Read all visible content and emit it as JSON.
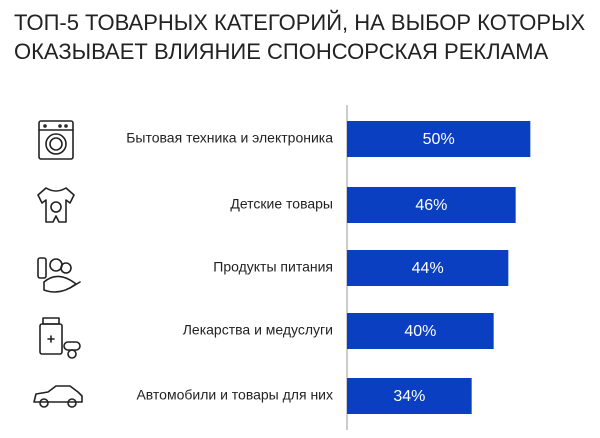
{
  "chart_data": {
    "type": "bar",
    "orientation": "horizontal",
    "title": [
      "ТОП-5 ТОВАРНЫХ КАТЕГОРИЙ, НА ВЫБОР КОТОРЫХ",
      "ОКАЗЫВАЕТ ВЛИЯНИЕ СПОНСОРСКАЯ РЕКЛАМА"
    ],
    "categories": [
      "Бытовая техника и электроника",
      "Детские товары",
      "Продукты питания",
      "Лекарства и медуслуги",
      "Автомобили и товары для них"
    ],
    "values": [
      50,
      46,
      44,
      40,
      34
    ],
    "value_labels": [
      "50%",
      "46%",
      "44%",
      "40%",
      "34%"
    ],
    "color": "#0b3fc1",
    "xlim": [
      0,
      60
    ]
  }
}
